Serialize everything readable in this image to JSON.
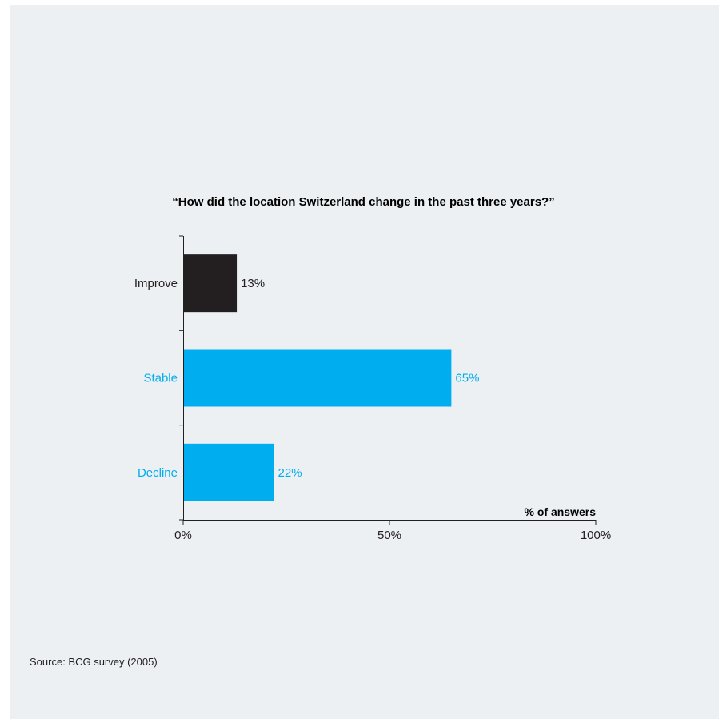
{
  "chart_data": {
    "type": "bar",
    "orientation": "horizontal",
    "title": "“How did the location Switzerland change in the past three years?”",
    "xlabel": "% of answers",
    "ylabel": "",
    "categories": [
      "Improve",
      "Stable",
      "Decline"
    ],
    "values": [
      13,
      65,
      22
    ],
    "value_labels": [
      "13%",
      "65%",
      "22%"
    ],
    "xlim": [
      0,
      100
    ],
    "x_ticks": [
      0,
      50,
      100
    ],
    "x_tick_labels": [
      "0%",
      "50%",
      "100%"
    ],
    "grid": false,
    "colors": {
      "Improve": "#231f20",
      "Stable": "#00aeef",
      "Decline": "#00aeef"
    },
    "label_colors": {
      "Improve": "#231f20",
      "Stable": "#00aeef",
      "Decline": "#00aeef"
    }
  },
  "source": "Source: BCG survey (2005)"
}
